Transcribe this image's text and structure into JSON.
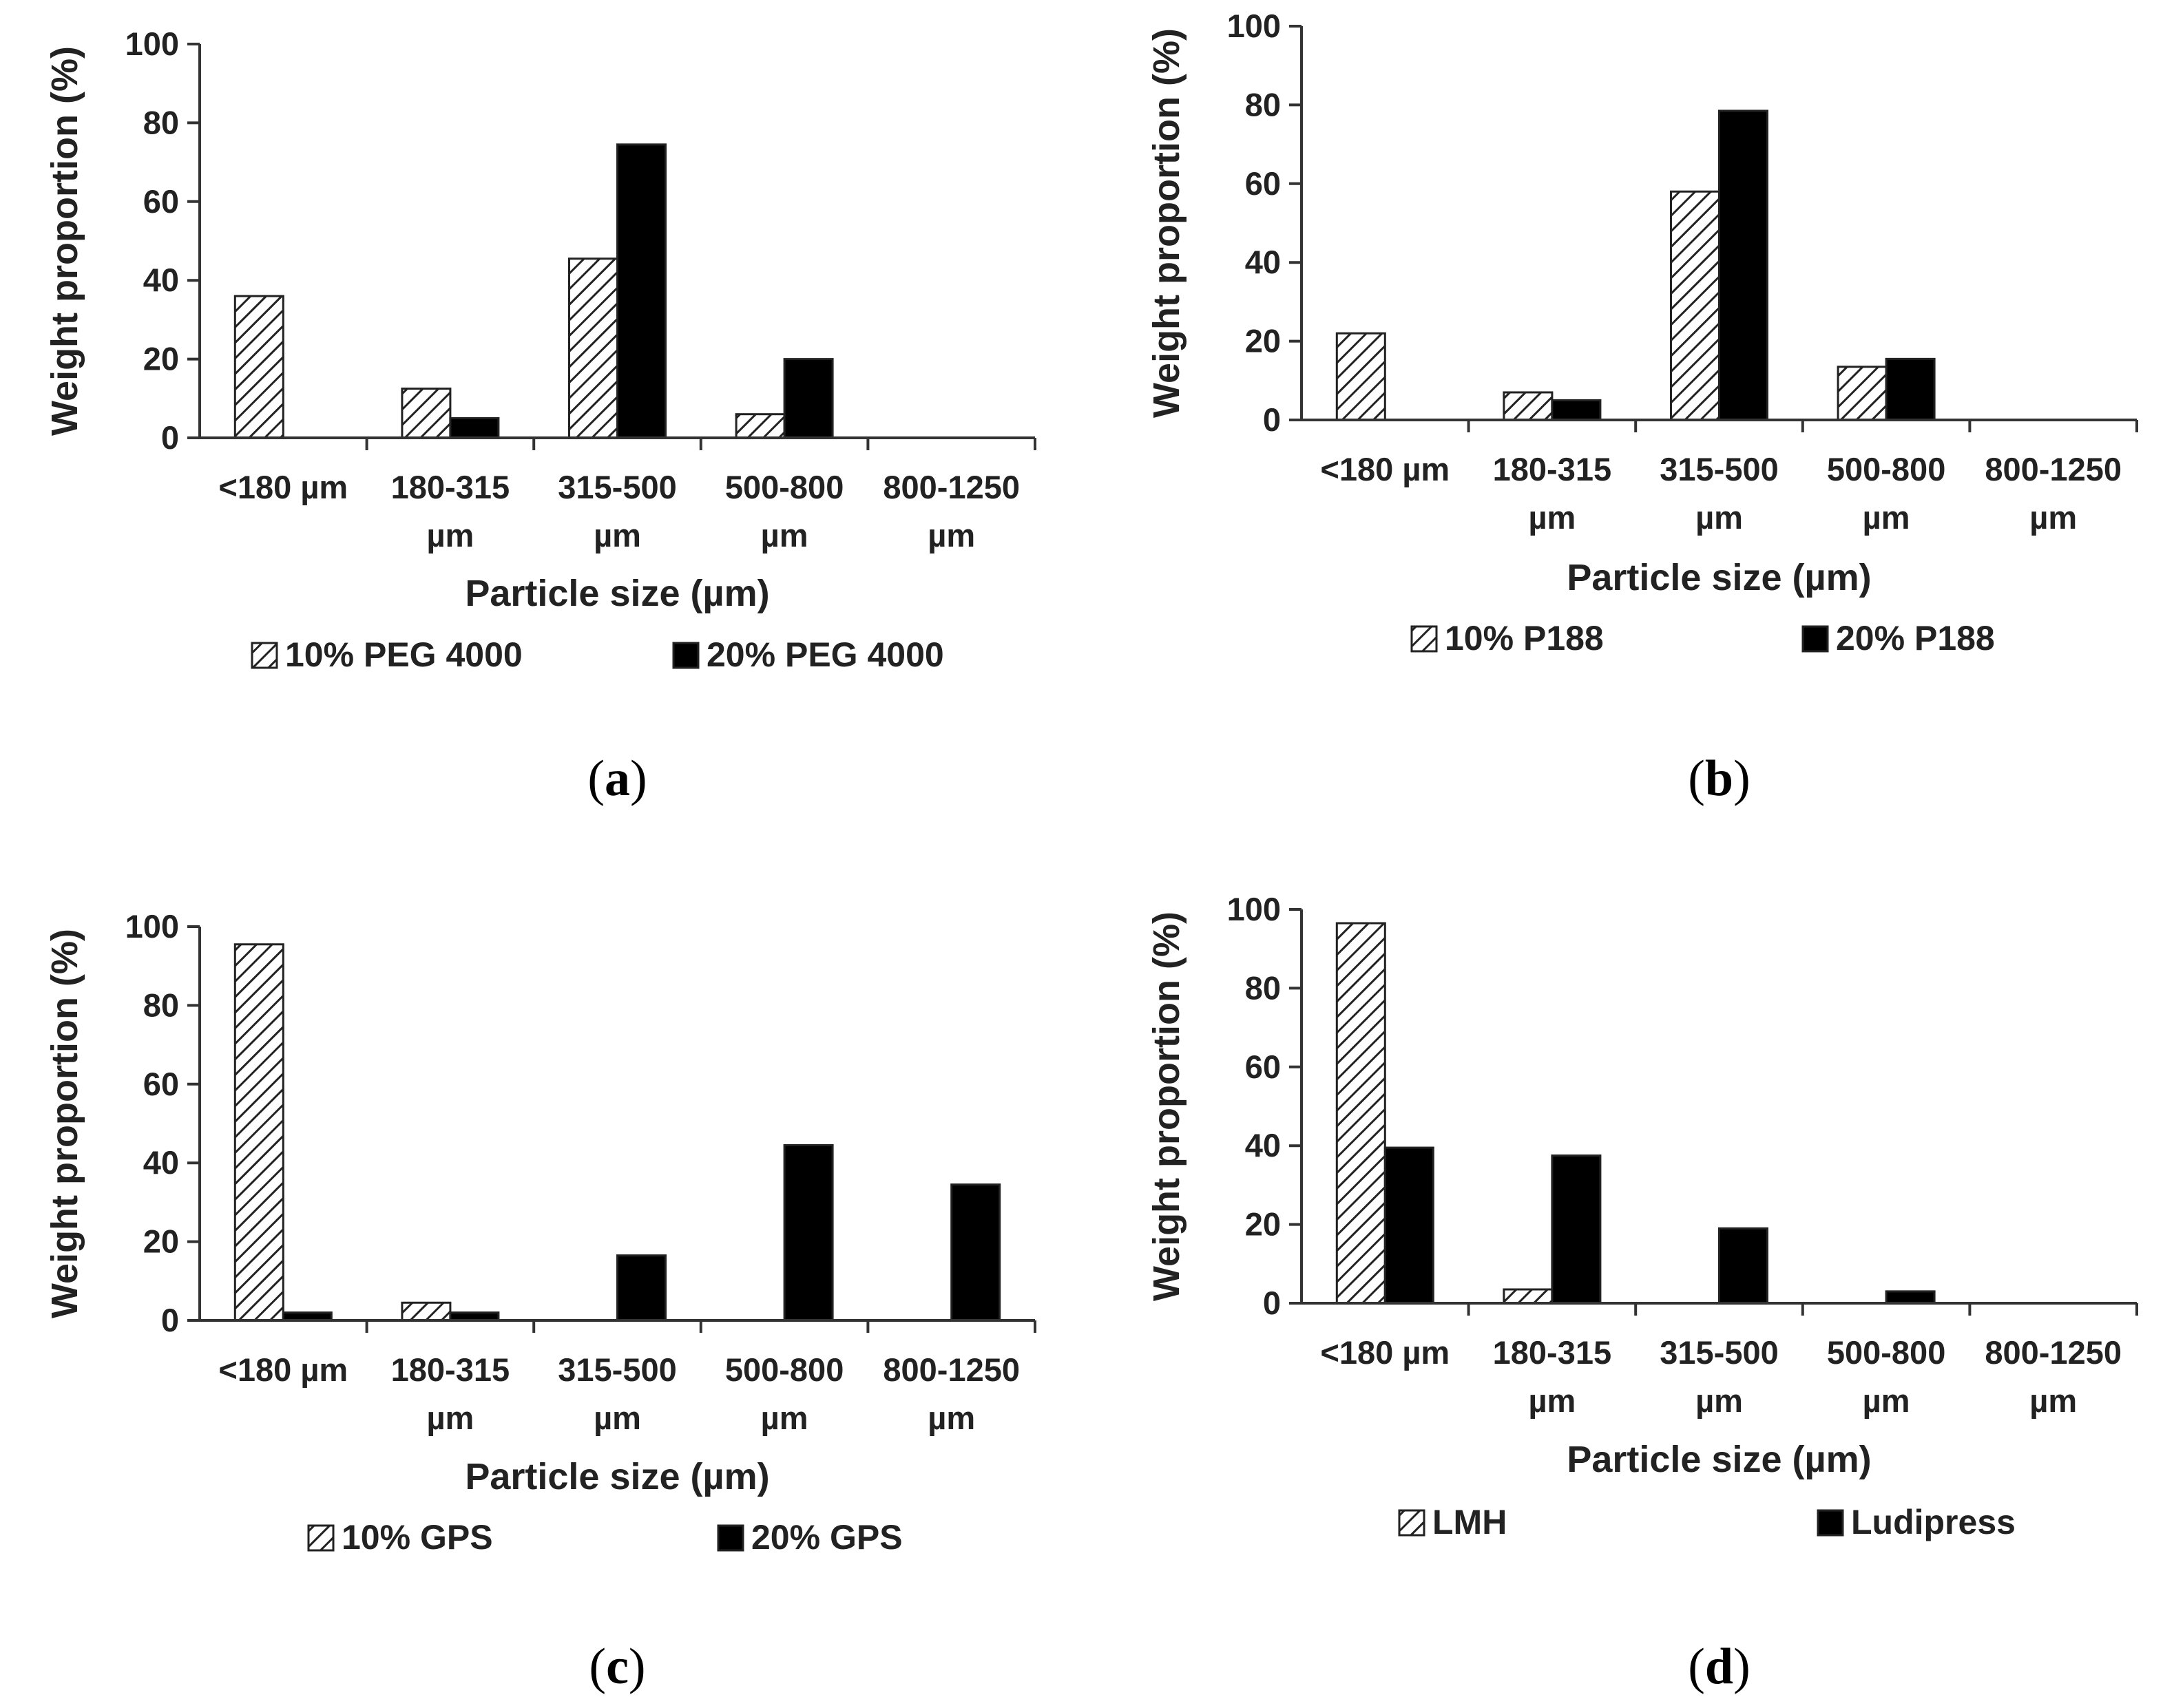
{
  "chart_data": [
    {
      "type": "bar",
      "panel_label": "a",
      "categories": [
        [
          "<180 µm"
        ],
        [
          "180-315",
          "µm"
        ],
        [
          "315-500",
          "µm"
        ],
        [
          "500-800",
          "µm"
        ],
        [
          "800-1250",
          "µm"
        ]
      ],
      "series": [
        {
          "name": "10% PEG 4000",
          "pattern": "hatch",
          "values": [
            36,
            12.5,
            45.5,
            6,
            0
          ]
        },
        {
          "name": "20% PEG 4000",
          "pattern": "solid",
          "values": [
            0,
            5,
            74.5,
            20,
            0
          ]
        }
      ],
      "ylabel": "Weight proportion (%)",
      "xlabel": "Particle size (µm)",
      "ylim": [
        0,
        100
      ],
      "yticks": [
        0,
        20,
        40,
        60,
        80,
        100
      ],
      "legend": "bottom"
    },
    {
      "type": "bar",
      "panel_label": "b",
      "categories": [
        [
          "<180 µm"
        ],
        [
          "180-315",
          "µm"
        ],
        [
          "315-500",
          "µm"
        ],
        [
          "500-800",
          "µm"
        ],
        [
          "800-1250",
          "µm"
        ]
      ],
      "series": [
        {
          "name": "10% P188",
          "pattern": "hatch",
          "values": [
            22,
            7,
            58,
            13.5,
            0
          ]
        },
        {
          "name": "20% P188",
          "pattern": "solid",
          "values": [
            0,
            5,
            78.5,
            15.5,
            0
          ]
        }
      ],
      "ylabel": "Weight proportion (%)",
      "xlabel": "Particle size (µm)",
      "ylim": [
        0,
        100
      ],
      "yticks": [
        0,
        20,
        40,
        60,
        80,
        100
      ],
      "legend": "bottom"
    },
    {
      "type": "bar",
      "panel_label": "c",
      "categories": [
        [
          "<180 µm"
        ],
        [
          "180-315",
          "µm"
        ],
        [
          "315-500",
          "µm"
        ],
        [
          "500-800",
          "µm"
        ],
        [
          "800-1250",
          "µm"
        ]
      ],
      "series": [
        {
          "name": "10% GPS",
          "pattern": "hatch",
          "values": [
            95.5,
            4.5,
            0,
            0,
            0
          ]
        },
        {
          "name": "20% GPS",
          "pattern": "solid",
          "values": [
            2,
            2,
            16.5,
            44.5,
            34.5
          ]
        }
      ],
      "ylabel": "Weight proportion (%)",
      "xlabel": "Particle size (µm)",
      "ylim": [
        0,
        100
      ],
      "yticks": [
        0,
        20,
        40,
        60,
        80,
        100
      ],
      "legend": "bottom"
    },
    {
      "type": "bar",
      "panel_label": "d",
      "categories": [
        [
          "<180 µm"
        ],
        [
          "180-315",
          "µm"
        ],
        [
          "315-500",
          "µm"
        ],
        [
          "500-800",
          "µm"
        ],
        [
          "800-1250",
          "µm"
        ]
      ],
      "series": [
        {
          "name": "LMH",
          "pattern": "hatch",
          "values": [
            96.5,
            3.5,
            0,
            0,
            0
          ]
        },
        {
          "name": "Ludipress",
          "pattern": "solid",
          "values": [
            39.5,
            37.5,
            19,
            3,
            0
          ]
        }
      ],
      "ylabel": "Weight proportion (%)",
      "xlabel": "Particle size (µm)",
      "ylim": [
        0,
        100
      ],
      "yticks": [
        0,
        20,
        40,
        60,
        80,
        100
      ],
      "legend": "bottom"
    }
  ]
}
